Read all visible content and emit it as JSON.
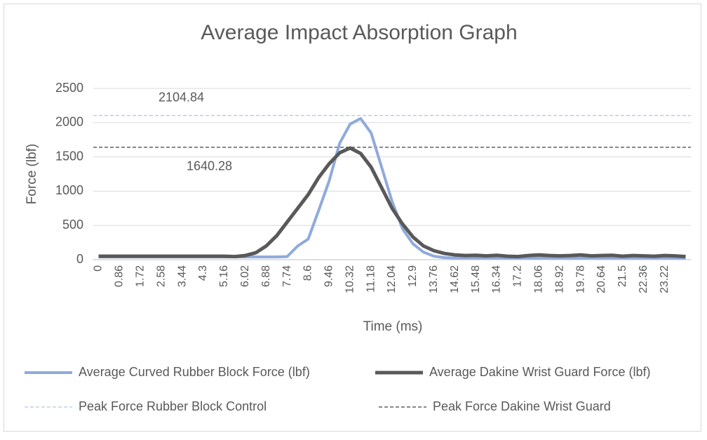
{
  "chart_data": {
    "type": "line",
    "title": "Average Impact Absorption Graph",
    "xlabel": "Time (ms)",
    "ylabel": "Force (lbf)",
    "categories": [
      "0",
      null,
      "0.86",
      null,
      "1.72",
      null,
      "2.58",
      null,
      "3.44",
      null,
      "4.3",
      null,
      "5.16",
      null,
      "6.02",
      null,
      "6.88",
      null,
      "7.74",
      null,
      "8.6",
      null,
      "9.46",
      null,
      "10.32",
      null,
      "11.18",
      null,
      "12.04",
      null,
      "12.9",
      null,
      "13.76",
      null,
      "14.62",
      null,
      "15.48",
      null,
      "16.34",
      null,
      "17.2",
      null,
      "18.06",
      null,
      "18.92",
      null,
      "19.78",
      null,
      "20.64",
      null,
      "21.5",
      null,
      "22.36",
      null,
      "23.22",
      null,
      null
    ],
    "series": [
      {
        "name": "Average Curved Rubber Block Force (lbf)",
        "color": "#8faadc",
        "values": [
          40,
          40,
          40,
          40,
          40,
          40,
          40,
          40,
          40,
          40,
          40,
          40,
          40,
          40,
          40,
          40,
          40,
          40,
          45,
          200,
          300,
          720,
          1150,
          1700,
          1980,
          2060,
          1850,
          1350,
          850,
          450,
          230,
          110,
          50,
          30,
          25,
          25,
          25,
          25,
          25,
          25,
          25,
          25,
          25,
          25,
          25,
          25,
          25,
          25,
          25,
          25,
          25,
          25,
          25,
          25,
          25,
          25,
          25
        ]
      },
      {
        "name": "Average Dakine Wrist Guard  Force (lbf)",
        "color": "#595959",
        "values": [
          50,
          50,
          50,
          50,
          50,
          50,
          50,
          50,
          50,
          50,
          50,
          50,
          50,
          45,
          60,
          100,
          200,
          350,
          550,
          750,
          950,
          1200,
          1400,
          1560,
          1630,
          1550,
          1350,
          1050,
          750,
          520,
          330,
          200,
          130,
          90,
          70,
          60,
          65,
          55,
          65,
          50,
          45,
          60,
          70,
          60,
          55,
          60,
          70,
          55,
          60,
          65,
          50,
          60,
          55,
          50,
          60,
          55,
          45
        ]
      }
    ],
    "reference_lines": [
      {
        "name": "Peak Force Rubber Block Control",
        "color": "#b4c7e7",
        "value": 2104.84
      },
      {
        "name": "Peak Force Dakine Wrist Guard",
        "color": "#404040",
        "value": 1640.28
      }
    ],
    "ylim": [
      0,
      2500
    ],
    "yticks": [
      0,
      500,
      1000,
      1500,
      2000,
      2500
    ],
    "grid": true,
    "legend": "bottom"
  }
}
